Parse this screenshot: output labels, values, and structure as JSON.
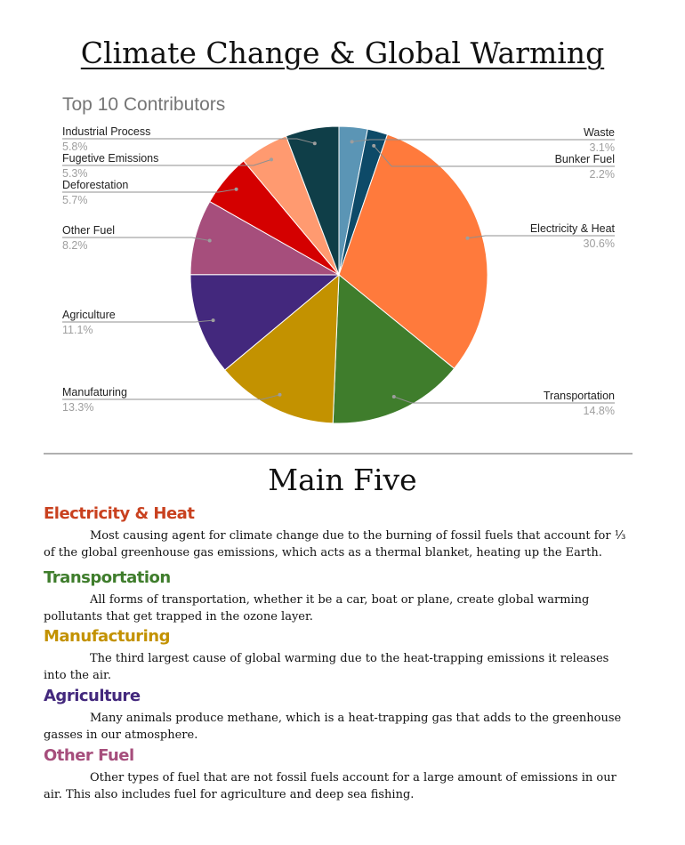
{
  "header": {
    "title": "Climate Change & Global Warming"
  },
  "chart_data": {
    "type": "pie",
    "title": "Top 10 Contributors",
    "slices": [
      {
        "label": "Waste",
        "value": 3.1,
        "value_text": "3.1%",
        "color": "#5b95b5"
      },
      {
        "label": "Bunker Fuel",
        "value": 2.2,
        "value_text": "2.2%",
        "color": "#0d4a68"
      },
      {
        "label": "Electricity & Heat",
        "value": 30.6,
        "value_text": "30.6%",
        "color": "#ff7a3c"
      },
      {
        "label": "Transportation",
        "value": 14.8,
        "value_text": "14.8%",
        "color": "#3f7d2c"
      },
      {
        "label": "Manufaturing",
        "value": 13.3,
        "value_text": "13.3%",
        "color": "#c39200"
      },
      {
        "label": "Agriculture",
        "value": 11.1,
        "value_text": "11.1%",
        "color": "#43287d"
      },
      {
        "label": "Other Fuel",
        "value": 8.2,
        "value_text": "8.2%",
        "color": "#a64e7c"
      },
      {
        "label": "Deforestation",
        "value": 5.7,
        "value_text": "5.7%",
        "color": "#d40000"
      },
      {
        "label": "Fugetive Emissions",
        "value": 5.3,
        "value_text": "5.3%",
        "color": "#ff9a70"
      },
      {
        "label": "Industrial Process",
        "value": 5.8,
        "value_text": "5.8%",
        "color": "#0f3e48"
      }
    ]
  },
  "main_five": {
    "title": "Main Five",
    "topics": [
      {
        "heading": "Electricity & Heat",
        "color": "#c9411f",
        "text": "Most causing agent for climate change due to the burning of fossil fuels that account for ⅓ of the global greenhouse gas emissions, which acts as a thermal blanket, heating up the Earth."
      },
      {
        "heading": "Transportation",
        "color": "#3f7d2c",
        "text": "All forms of transportation, whether it be a car, boat or plane, create global warming pollutants that get trapped in the ozone layer."
      },
      {
        "heading": "Manufacturing",
        "color": "#c39200",
        "text": "The third largest cause of global warming due to the heat-trapping emissions it releases into the air."
      },
      {
        "heading": "Agriculture",
        "color": "#43287d",
        "text": "Many animals produce methane, which is a heat-trapping gas that adds to the greenhouse gasses in our atmosphere."
      },
      {
        "heading": "Other Fuel",
        "color": "#a64e7c",
        "text": "Other types of fuel that are not fossil fuels account for a large amount of emissions in our air. This also includes fuel for agriculture and deep sea fishing."
      }
    ]
  }
}
